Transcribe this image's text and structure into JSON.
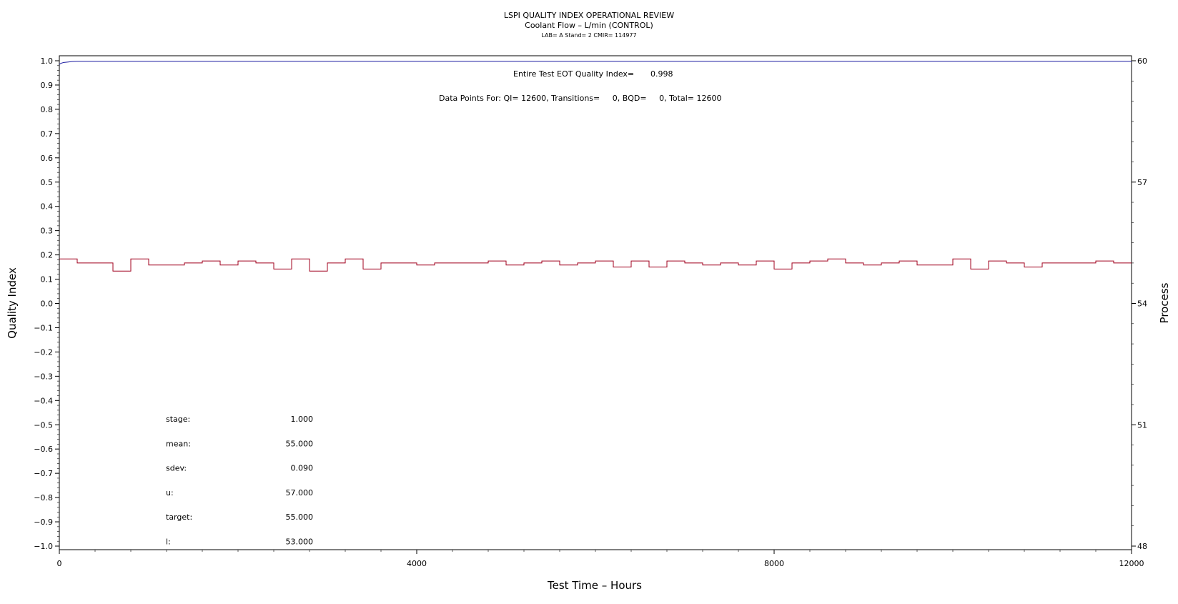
{
  "chart_data": {
    "type": "line",
    "title": "LSPI QUALITY INDEX OPERATIONAL REVIEW",
    "subtitle": "Coolant Flow – L/min (CONTROL)",
    "subtitle2": "LAB= A Stand= 2 CMIR= 114977",
    "xlabel": "Test Time – Hours",
    "ylabel": "Quality Index",
    "y2label": "Process",
    "xlim": [
      0,
      12000
    ],
    "ylim": [
      -1.0,
      1.0
    ],
    "y2lim": [
      48,
      60
    ],
    "x_ticks": [
      0,
      4000,
      8000,
      12000
    ],
    "x_tick_labels": [
      "0",
      "4000",
      "8000",
      "12000"
    ],
    "y_ticks": [
      1.0,
      0.9,
      0.8,
      0.7,
      0.6,
      0.5,
      0.4,
      0.3,
      0.2,
      0.1,
      0.0,
      -0.1,
      -0.2,
      -0.3,
      -0.4,
      -0.5,
      -0.6,
      -0.7,
      -0.8,
      -0.9,
      -1.0
    ],
    "y_tick_labels": [
      "1.0",
      "0.9",
      "0.8",
      "0.7",
      "0.6",
      "0.5",
      "0.4",
      "0.3",
      "0.2",
      "0.1",
      "0.0",
      "−0.1",
      "−0.2",
      "−0.3",
      "−0.4",
      "−0.5",
      "−0.6",
      "−0.7",
      "−0.8",
      "−0.9",
      "−1.0"
    ],
    "y2_ticks": [
      60,
      57,
      54,
      51,
      48
    ],
    "y2_tick_labels": [
      "60",
      "57",
      "54",
      "51",
      "48"
    ],
    "grid": false,
    "annotations": {
      "eot_label": "Entire Test EOT Quality Index=",
      "eot_value": "0.998",
      "points_label": "Data Points For: QI= 12600, Transitions=     0, BQD=     0, Total= 12600"
    },
    "stats": [
      {
        "label": "stage:",
        "value": "1.000"
      },
      {
        "label": "mean:",
        "value": "55.000"
      },
      {
        "label": "sdev:",
        "value": "0.090"
      },
      {
        "label": "u:",
        "value": "57.000"
      },
      {
        "label": "target:",
        "value": "55.000"
      },
      {
        "label": "l:",
        "value": "53.000"
      }
    ],
    "series": [
      {
        "axis": "left",
        "color": "#1a1aa0",
        "x": [
          0,
          20,
          50,
          100,
          150,
          200,
          400,
          12000
        ],
        "y": [
          0.985,
          0.99,
          0.993,
          0.995,
          0.997,
          0.998,
          0.998,
          0.998
        ]
      },
      {
        "axis": "right",
        "color": "#a0001e",
        "x": [
          0,
          200,
          400,
          600,
          800,
          1000,
          1200,
          1400,
          1600,
          1800,
          2000,
          2200,
          2400,
          2600,
          2800,
          3000,
          3200,
          3400,
          3600,
          3800,
          4000,
          4200,
          4400,
          4600,
          4800,
          5000,
          5200,
          5400,
          5600,
          5800,
          6000,
          6200,
          6400,
          6600,
          6800,
          7000,
          7200,
          7400,
          7600,
          7800,
          8000,
          8200,
          8400,
          8600,
          8800,
          9000,
          9200,
          9400,
          9600,
          9800,
          10000,
          10200,
          10400,
          10600,
          10800,
          11000,
          11200,
          11400,
          11600,
          11800,
          12000
        ],
        "y": [
          55.1,
          55.0,
          55.0,
          54.8,
          55.1,
          54.95,
          54.95,
          55.0,
          55.05,
          54.95,
          55.05,
          55.0,
          54.85,
          55.1,
          54.8,
          55.0,
          55.1,
          54.85,
          55.0,
          55.0,
          54.95,
          55.0,
          55.0,
          55.0,
          55.05,
          54.95,
          55.0,
          55.05,
          54.95,
          55.0,
          55.05,
          54.9,
          55.05,
          54.9,
          55.05,
          55.0,
          54.95,
          55.0,
          54.95,
          55.05,
          54.85,
          55.0,
          55.05,
          55.1,
          55.0,
          54.95,
          55.0,
          55.05,
          54.95,
          54.95,
          55.1,
          54.85,
          55.05,
          55.0,
          54.9,
          55.0,
          55.0,
          55.0,
          55.05,
          55.0,
          55.0
        ]
      }
    ]
  }
}
